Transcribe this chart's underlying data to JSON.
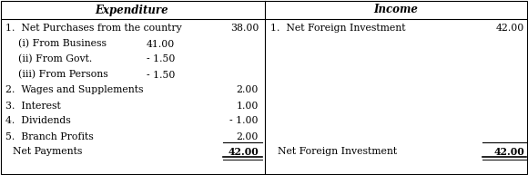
{
  "title_left": "Expenditure",
  "title_right": "Income",
  "expenditure_rows": [
    {
      "label": "1.  Net Purchases from the country",
      "col1": "",
      "col2": "38.00"
    },
    {
      "label": "    (i) From Business",
      "col1": "41.00",
      "col2": ""
    },
    {
      "label": "    (ii) From Govt.",
      "col1": "- 1.50",
      "col2": ""
    },
    {
      "label": "    (iii) From Persons",
      "col1": "- 1.50",
      "col2": ""
    },
    {
      "label": "2.  Wages and Supplements",
      "col1": "",
      "col2": "2.00"
    },
    {
      "label": "3.  Interest",
      "col1": "",
      "col2": "1.00"
    },
    {
      "label": "4.  Dividends",
      "col1": "",
      "col2": "- 1.00"
    },
    {
      "label": "5.  Branch Profits",
      "col1": "",
      "col2": "2.00"
    }
  ],
  "expenditure_total_label": "Net Payments",
  "expenditure_total_value": "42.00",
  "income_rows": [
    {
      "label": "1.  Net Foreign Investment",
      "value": "42.00"
    }
  ],
  "income_total_label": "Net Foreign Investment",
  "income_total_value": "42.00",
  "bg_color": "#ffffff",
  "border_color": "#000000",
  "text_color": "#000000",
  "font_size": 7.8,
  "header_font_size": 8.5
}
